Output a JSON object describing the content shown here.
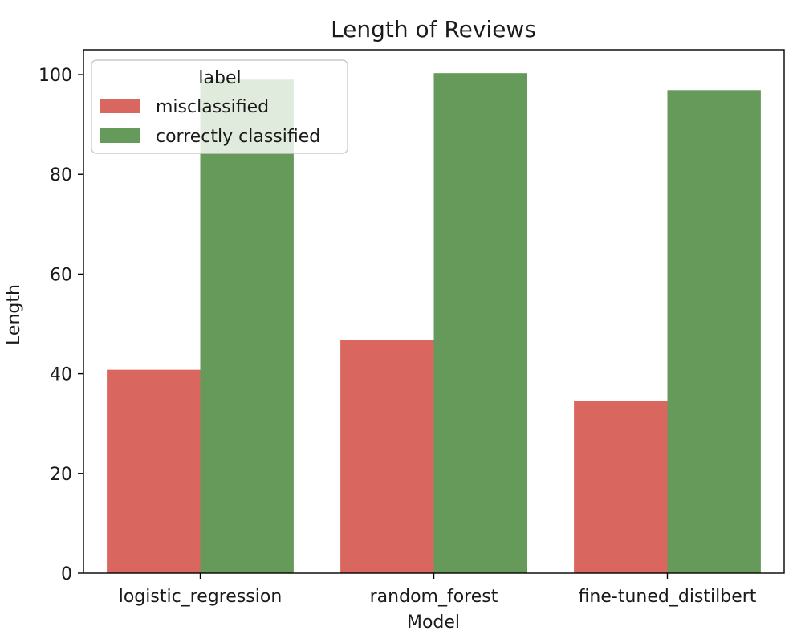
{
  "chart_data": {
    "type": "bar",
    "title": "Length of Reviews",
    "xlabel": "Model",
    "ylabel": "Length",
    "categories": [
      "logistic_regression",
      "random_forest",
      "fine-tuned_distilbert"
    ],
    "ylim": [
      0,
      105
    ],
    "yticks": [
      0,
      20,
      40,
      60,
      80,
      100
    ],
    "grid": false,
    "legend": {
      "title": "label",
      "placement": "upper-left"
    },
    "series": [
      {
        "name": "misclassified",
        "color": "#d9665f",
        "values": [
          40.8,
          46.7,
          34.5
        ]
      },
      {
        "name": "correctly classified",
        "color": "#659a5a",
        "values": [
          99.0,
          100.3,
          96.9
        ]
      }
    ]
  }
}
